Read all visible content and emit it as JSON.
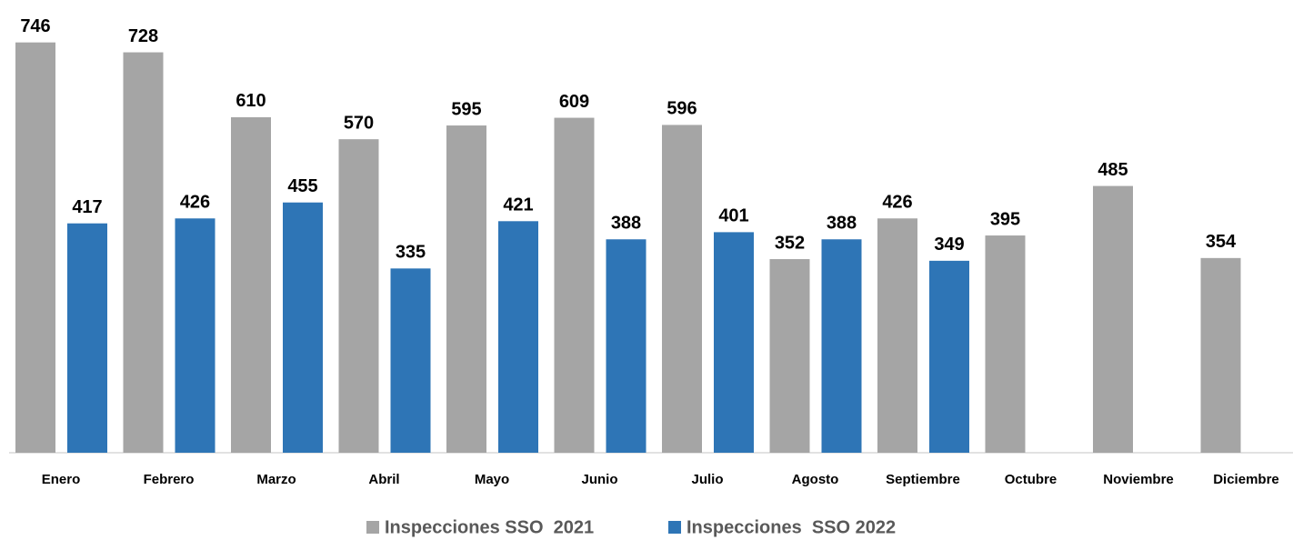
{
  "chart_data": {
    "type": "bar",
    "categories": [
      "Enero",
      "Febrero",
      "Marzo",
      "Abril",
      "Mayo",
      "Junio",
      "Julio",
      "Agosto",
      "Septiembre",
      "Octubre",
      "Noviembre",
      "Diciembre"
    ],
    "series": [
      {
        "name": "Inspecciones SSO  2021",
        "color": "#a5a5a5",
        "values": [
          746,
          728,
          610,
          570,
          595,
          609,
          596,
          352,
          426,
          395,
          485,
          354
        ]
      },
      {
        "name": "Inspecciones  SSO 2022",
        "color": "#2e75b6",
        "values": [
          417,
          426,
          455,
          335,
          421,
          388,
          401,
          388,
          349,
          null,
          null,
          null
        ]
      }
    ],
    "ylim": [
      0,
      800
    ]
  }
}
